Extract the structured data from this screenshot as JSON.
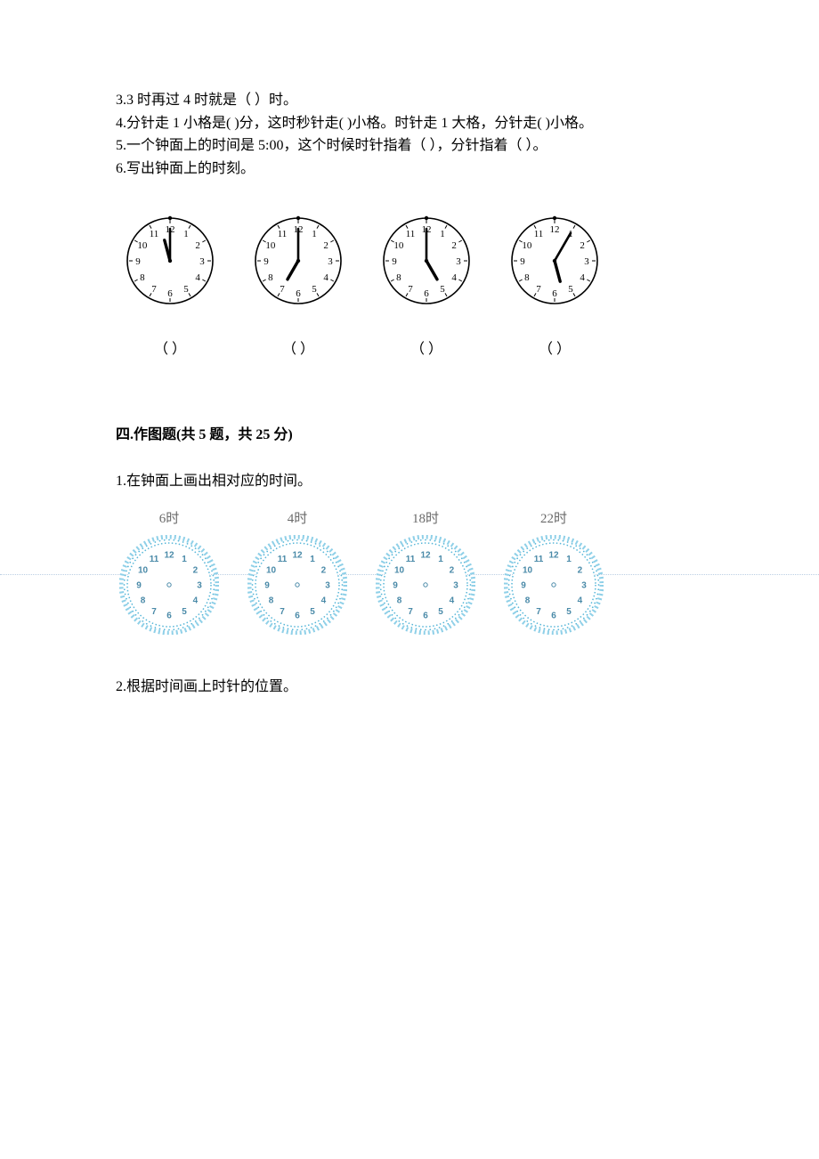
{
  "questions": {
    "q3": "3.3 时再过 4 时就是（     ）时。",
    "q4": "4.分针走 1 小格是(     )分，这时秒针走(     )小格。时针走 1 大格，分针走(     )小格。",
    "q5": "5.一个钟面上的时间是 5:00，这个时候时针指着（     ），分针指着（     ）。",
    "q6": "6.写出钟面上的时刻。"
  },
  "clocks_q6": [
    {
      "hour_angle": 345,
      "minute_angle": 0,
      "answer": "（      ）"
    },
    {
      "hour_angle": 210,
      "minute_angle": 0,
      "answer": "（      ）"
    },
    {
      "hour_angle": 150,
      "minute_angle": 0,
      "answer": "（      ）"
    },
    {
      "hour_angle": 165,
      "minute_angle": 30,
      "answer": "（      ）"
    }
  ],
  "section4": {
    "title": "四.作图题(共 5 题，共 25 分)",
    "q1": "1.在钟面上画出相对应的时间。",
    "q2": "2.根据时间画上时针的位置。",
    "clocks": [
      {
        "label": "6时"
      },
      {
        "label": "4时"
      },
      {
        "label": "18时"
      },
      {
        "label": "22时"
      }
    ]
  },
  "style": {
    "clock1": {
      "size": 102,
      "stroke": "#000000",
      "fill": "#ffffff",
      "number_fontsize": 11,
      "number_color": "#000000",
      "hand_color": "#000000"
    },
    "clock2": {
      "size": 112,
      "outer_ring_color": "#8fd0e8",
      "dot_color": "#56b6d8",
      "face_fill": "#ffffff",
      "number_fontsize": 10,
      "number_color": "#4a8aa8",
      "center_dot": "#4a8aa8"
    },
    "numbers": [
      "12",
      "1",
      "2",
      "3",
      "4",
      "5",
      "6",
      "7",
      "8",
      "9",
      "10",
      "11"
    ]
  }
}
